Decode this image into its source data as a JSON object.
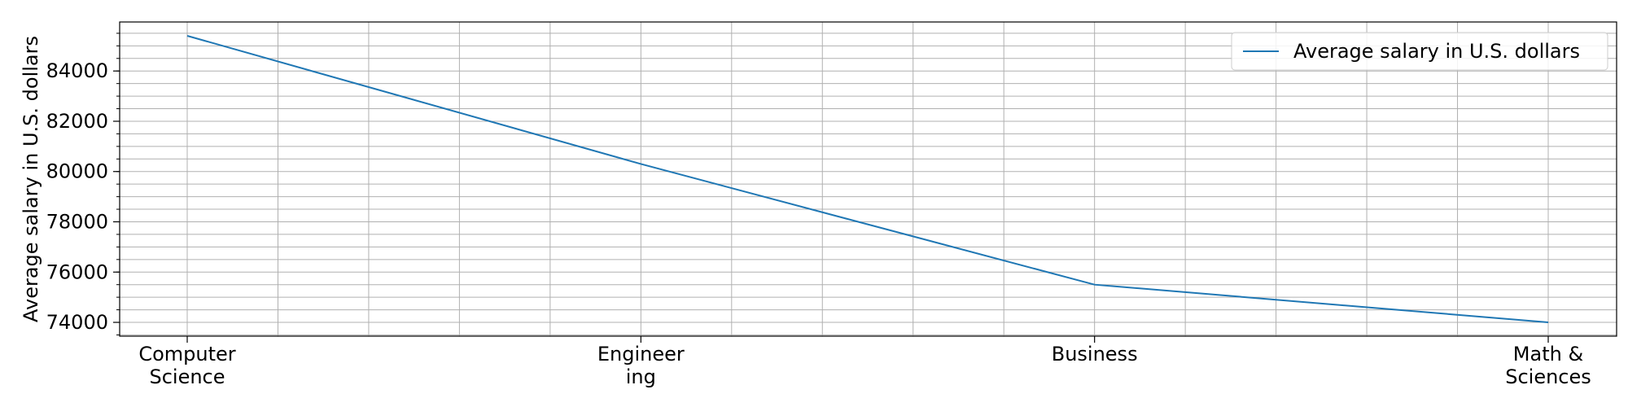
{
  "chart_data": {
    "type": "line",
    "title": "",
    "xlabel": "",
    "ylabel": "Average salary in U.S. dollars",
    "categories": [
      [
        "Computer",
        "Science"
      ],
      [
        "Engineer",
        "ing"
      ],
      [
        "Business"
      ],
      [
        "Math &",
        "Sciences"
      ]
    ],
    "series": [
      {
        "name": "Average salary in U.S. dollars",
        "values": [
          85400,
          80300,
          75500,
          74000
        ],
        "color": "#1f77b4"
      }
    ],
    "ylim": [
      73450,
      85950
    ],
    "yticks": [
      74000,
      76000,
      78000,
      80000,
      82000,
      84000
    ],
    "grid": true,
    "legend_position": "top-right"
  }
}
